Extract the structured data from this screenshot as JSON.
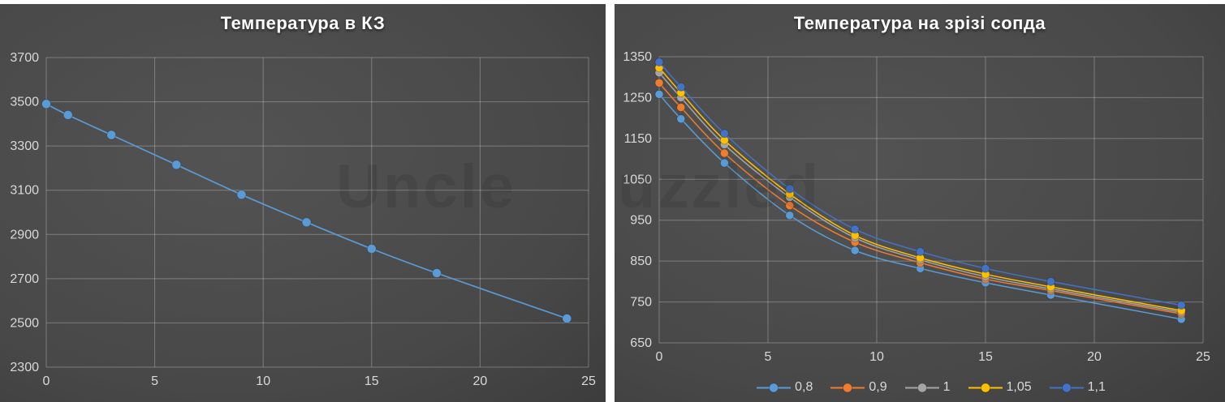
{
  "page": {
    "background": "#ffffff",
    "panel_color_center": "#535353",
    "panel_color_edge": "#2e2e2e",
    "text_color": "#d9d9d9",
    "title_color": "#fbfbfb"
  },
  "watermark": {
    "left_fragment": "Uncle",
    "right_fragment": "uzzled"
  },
  "chart_data": [
    {
      "id": "kz",
      "type": "line",
      "title": "Температура в КЗ",
      "xlabel": "",
      "ylabel": "",
      "x": [
        0,
        1,
        3,
        6,
        9,
        12,
        15,
        18,
        24
      ],
      "series": [
        {
          "name": "",
          "color": "#5B9BD5",
          "values": [
            3490,
            3440,
            3350,
            3215,
            3080,
            2955,
            2835,
            2725,
            2520
          ]
        }
      ],
      "xlim": [
        0,
        25
      ],
      "ylim": [
        2300,
        3700
      ],
      "xticks": [
        0,
        5,
        10,
        15,
        20,
        25
      ],
      "yticks": [
        2300,
        2500,
        2700,
        2900,
        3100,
        3300,
        3500,
        3700
      ],
      "grid": true,
      "legend_position": "none",
      "grid_color": "rgba(255,255,255,0.28)"
    },
    {
      "id": "nozzle",
      "type": "line",
      "title": "Температура на зрізі сопда",
      "xlabel": "",
      "ylabel": "",
      "x": [
        0,
        1,
        3,
        6,
        9,
        12,
        15,
        18,
        24
      ],
      "series": [
        {
          "name": "0,8",
          "color": "#5B9BD5",
          "values": [
            1258,
            1198,
            1090,
            962,
            876,
            832,
            797,
            767,
            708
          ]
        },
        {
          "name": "0,9",
          "color": "#ED7D31",
          "values": [
            1286,
            1226,
            1114,
            986,
            896,
            846,
            806,
            778,
            721
          ]
        },
        {
          "name": "1",
          "color": "#A5A5A5",
          "values": [
            1311,
            1250,
            1135,
            1006,
            907,
            853,
            812,
            782,
            725
          ]
        },
        {
          "name": "1,05",
          "color": "#FFC000",
          "values": [
            1323,
            1262,
            1146,
            1014,
            913,
            858,
            818,
            787,
            729
          ]
        },
        {
          "name": "1,1",
          "color": "#4472C4",
          "values": [
            1337,
            1276,
            1162,
            1027,
            928,
            873,
            832,
            800,
            742
          ]
        }
      ],
      "xlim": [
        0,
        25
      ],
      "ylim": [
        650,
        1350
      ],
      "xticks": [
        0,
        5,
        10,
        15,
        20,
        25
      ],
      "yticks": [
        650,
        750,
        850,
        950,
        1050,
        1150,
        1250,
        1350
      ],
      "grid": true,
      "legend_position": "bottom",
      "grid_color": "rgba(255,255,255,0.28)"
    }
  ]
}
